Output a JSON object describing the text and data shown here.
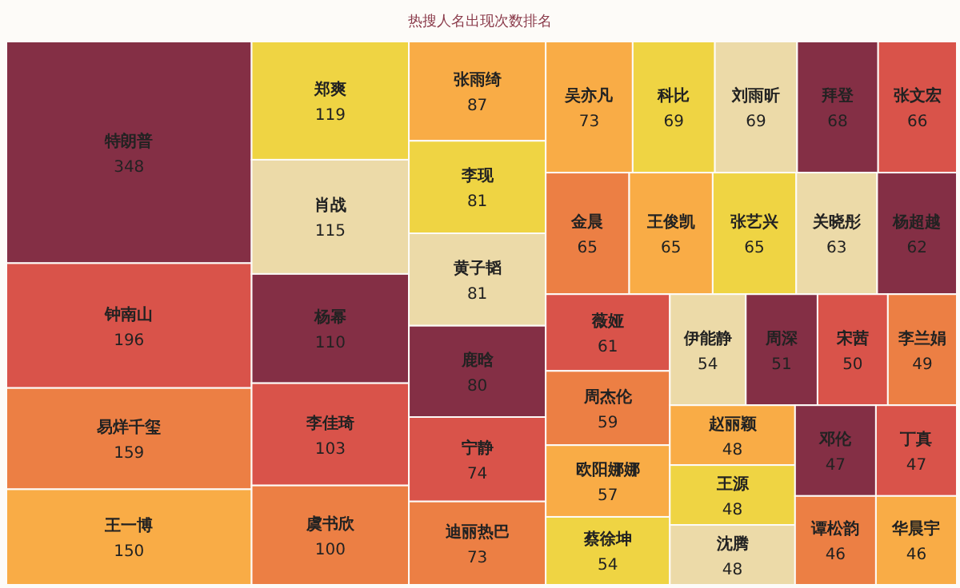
{
  "chart_data": {
    "type": "other",
    "title": "热搜人名出现次数排名",
    "categories": [
      "特朗普",
      "钟南山",
      "易烊千玺",
      "王一博",
      "郑爽",
      "肖战",
      "杨幂",
      "李佳琦",
      "虞书欣",
      "张雨绮",
      "李现",
      "黄子韬",
      "鹿晗",
      "宁静",
      "迪丽热巴",
      "吴亦凡",
      "科比",
      "刘雨昕",
      "拜登",
      "张文宏",
      "金晨",
      "王俊凯",
      "张艺兴",
      "关晓彤",
      "杨超越",
      "薇娅",
      "周杰伦",
      "欧阳娜娜",
      "蔡徐坤",
      "伊能静",
      "周深",
      "宋茜",
      "李兰娟",
      "赵丽颖",
      "王源",
      "沈腾",
      "邓伦",
      "丁真",
      "谭松韵",
      "华晨宇"
    ],
    "values": [
      348,
      196,
      159,
      150,
      119,
      115,
      110,
      103,
      100,
      87,
      81,
      81,
      80,
      74,
      73,
      73,
      69,
      69,
      68,
      66,
      65,
      65,
      65,
      63,
      62,
      61,
      59,
      57,
      54,
      54,
      51,
      50,
      49,
      48,
      48,
      48,
      47,
      47,
      46,
      46
    ],
    "colors": [
      "#842f45",
      "#d9534a",
      "#ec7f44",
      "#f9ac46",
      "#efd443",
      "#ecdaa8",
      "#842f45",
      "#d9534a",
      "#ec7f44",
      "#f9ac46",
      "#efd443",
      "#ecdaa8",
      "#842f45",
      "#d9534a",
      "#ec7f44",
      "#f9ac46",
      "#efd443",
      "#ecdaa8",
      "#842f45",
      "#d9534a",
      "#ec7f44",
      "#f9ac46",
      "#efd443",
      "#ecdaa8",
      "#842f45",
      "#d9534a",
      "#ec7f44",
      "#f9ac46",
      "#efd443",
      "#ecdaa8",
      "#842f45",
      "#d9534a",
      "#ec7f44",
      "#f9ac46",
      "#efd443",
      "#ecdaa8",
      "#842f45",
      "#d9534a",
      "#ec7f44",
      "#f9ac46"
    ],
    "data_labels": true
  }
}
